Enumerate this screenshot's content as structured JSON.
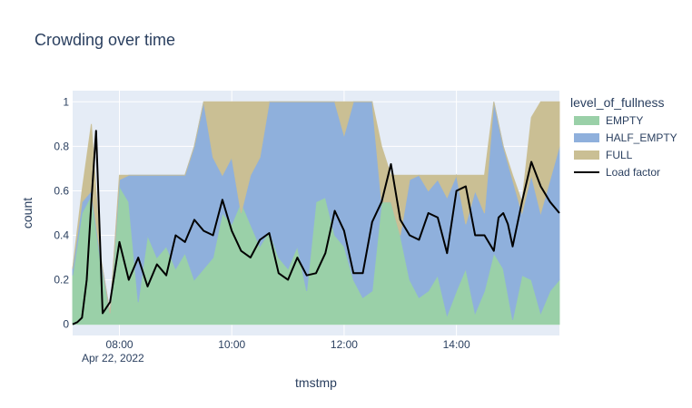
{
  "chart_data": {
    "type": "area",
    "title": "Crowding over time",
    "xlabel": "tmstmp",
    "ylabel": "count",
    "date_label": "Apr 22, 2022",
    "legend_title": "level_of_fullness",
    "legend_position": "right",
    "grid": true,
    "x_range": [
      "07:10",
      "15:50"
    ],
    "x_ticks": [
      "08:00",
      "10:00",
      "12:00",
      "14:00"
    ],
    "ylim": [
      -0.05,
      1.05
    ],
    "y_ticks": [
      "0",
      "0.2",
      "0.4",
      "0.6",
      "0.8",
      "1"
    ],
    "colors": {
      "EMPTY": "#9ad0a8",
      "HALF_EMPTY": "#8fb0dc",
      "FULL": "#cabf94",
      "Load factor": "#000000",
      "plot_bg": "#e5ecf6"
    },
    "stacked_series": [
      {
        "name": "EMPTY",
        "points": [
          [
            "07:10",
            0.22
          ],
          [
            "07:20",
            0.5
          ],
          [
            "07:30",
            0.58
          ],
          [
            "07:40",
            0.28
          ],
          [
            "07:50",
            0.05
          ],
          [
            "08:00",
            0.62
          ],
          [
            "08:10",
            0.55
          ],
          [
            "08:20",
            0.1
          ],
          [
            "08:30",
            0.4
          ],
          [
            "08:40",
            0.3
          ],
          [
            "08:50",
            0.35
          ],
          [
            "09:00",
            0.25
          ],
          [
            "09:10",
            0.32
          ],
          [
            "09:20",
            0.2
          ],
          [
            "09:30",
            0.25
          ],
          [
            "09:40",
            0.3
          ],
          [
            "09:50",
            0.5
          ],
          [
            "10:00",
            0.45
          ],
          [
            "10:10",
            0.55
          ],
          [
            "10:20",
            0.45
          ],
          [
            "10:30",
            0.35
          ],
          [
            "10:40",
            0.42
          ],
          [
            "10:50",
            0.3
          ],
          [
            "11:00",
            0.25
          ],
          [
            "11:10",
            0.35
          ],
          [
            "11:20",
            0.15
          ],
          [
            "11:30",
            0.55
          ],
          [
            "11:40",
            0.57
          ],
          [
            "11:50",
            0.4
          ],
          [
            "12:00",
            0.35
          ],
          [
            "12:10",
            0.2
          ],
          [
            "12:20",
            0.12
          ],
          [
            "12:30",
            0.15
          ],
          [
            "12:40",
            0.55
          ],
          [
            "12:50",
            0.55
          ],
          [
            "13:00",
            0.4
          ],
          [
            "13:10",
            0.2
          ],
          [
            "13:20",
            0.12
          ],
          [
            "13:30",
            0.15
          ],
          [
            "13:40",
            0.22
          ],
          [
            "13:50",
            0.04
          ],
          [
            "14:00",
            0.15
          ],
          [
            "14:10",
            0.25
          ],
          [
            "14:20",
            0.05
          ],
          [
            "14:30",
            0.15
          ],
          [
            "14:40",
            0.32
          ],
          [
            "14:50",
            0.25
          ],
          [
            "15:00",
            0.02
          ],
          [
            "15:10",
            0.22
          ],
          [
            "15:20",
            0.2
          ],
          [
            "15:30",
            0.05
          ],
          [
            "15:40",
            0.15
          ],
          [
            "15:50",
            0.2
          ]
        ]
      },
      {
        "name": "HALF_EMPTY",
        "points": [
          [
            "07:10",
            0.25
          ],
          [
            "07:20",
            0.55
          ],
          [
            "07:30",
            0.6
          ],
          [
            "07:40",
            0.3
          ],
          [
            "07:50",
            0.05
          ],
          [
            "08:00",
            0.65
          ],
          [
            "08:10",
            0.67
          ],
          [
            "08:20",
            0.67
          ],
          [
            "08:30",
            0.67
          ],
          [
            "08:40",
            0.67
          ],
          [
            "08:50",
            0.67
          ],
          [
            "09:00",
            0.67
          ],
          [
            "09:10",
            0.67
          ],
          [
            "09:20",
            0.8
          ],
          [
            "09:30",
            1
          ],
          [
            "09:40",
            0.75
          ],
          [
            "09:50",
            0.67
          ],
          [
            "10:00",
            0.75
          ],
          [
            "10:10",
            0.5
          ],
          [
            "10:20",
            0.67
          ],
          [
            "10:30",
            0.75
          ],
          [
            "10:40",
            1
          ],
          [
            "10:50",
            1
          ],
          [
            "11:00",
            1
          ],
          [
            "11:10",
            1
          ],
          [
            "11:20",
            1
          ],
          [
            "11:30",
            1
          ],
          [
            "11:40",
            1
          ],
          [
            "11:50",
            1
          ],
          [
            "12:00",
            0.85
          ],
          [
            "12:10",
            1
          ],
          [
            "12:20",
            1
          ],
          [
            "12:30",
            1
          ],
          [
            "12:40",
            0.55
          ],
          [
            "12:50",
            0.55
          ],
          [
            "13:00",
            0.4
          ],
          [
            "13:10",
            0.65
          ],
          [
            "13:20",
            0.67
          ],
          [
            "13:30",
            0.6
          ],
          [
            "13:40",
            0.65
          ],
          [
            "13:50",
            0.57
          ],
          [
            "14:00",
            0.67
          ],
          [
            "14:10",
            0.45
          ],
          [
            "14:20",
            0.6
          ],
          [
            "14:30",
            0.5
          ],
          [
            "14:40",
            1
          ],
          [
            "14:50",
            0.8
          ],
          [
            "15:00",
            0.65
          ],
          [
            "15:10",
            0.5
          ],
          [
            "15:20",
            0.67
          ],
          [
            "15:30",
            0.5
          ],
          [
            "15:40",
            0.65
          ],
          [
            "15:50",
            0.8
          ]
        ]
      },
      {
        "name": "FULL",
        "points": [
          [
            "07:10",
            0.25
          ],
          [
            "07:20",
            0.6
          ],
          [
            "07:30",
            0.9
          ],
          [
            "07:40",
            0.3
          ],
          [
            "07:50",
            0.05
          ],
          [
            "08:00",
            0.67
          ],
          [
            "08:10",
            0.67
          ],
          [
            "08:20",
            0.67
          ],
          [
            "08:30",
            0.67
          ],
          [
            "08:40",
            0.67
          ],
          [
            "08:50",
            0.67
          ],
          [
            "09:00",
            0.67
          ],
          [
            "09:10",
            0.67
          ],
          [
            "09:20",
            0.8
          ],
          [
            "09:30",
            1
          ],
          [
            "09:40",
            1
          ],
          [
            "09:50",
            1
          ],
          [
            "10:00",
            1
          ],
          [
            "10:10",
            1
          ],
          [
            "10:20",
            1
          ],
          [
            "10:30",
            1
          ],
          [
            "10:40",
            1
          ],
          [
            "10:50",
            1
          ],
          [
            "11:00",
            1
          ],
          [
            "11:10",
            1
          ],
          [
            "11:20",
            1
          ],
          [
            "11:30",
            1
          ],
          [
            "11:40",
            1
          ],
          [
            "11:50",
            1
          ],
          [
            "12:00",
            1
          ],
          [
            "12:10",
            1
          ],
          [
            "12:20",
            1
          ],
          [
            "12:30",
            1
          ],
          [
            "12:40",
            0.8
          ],
          [
            "12:50",
            0.67
          ],
          [
            "13:00",
            0.67
          ],
          [
            "13:10",
            0.67
          ],
          [
            "13:20",
            0.67
          ],
          [
            "13:30",
            0.67
          ],
          [
            "13:40",
            0.67
          ],
          [
            "13:50",
            0.67
          ],
          [
            "14:00",
            0.67
          ],
          [
            "14:10",
            0.67
          ],
          [
            "14:20",
            0.67
          ],
          [
            "14:30",
            0.67
          ],
          [
            "14:40",
            1
          ],
          [
            "14:50",
            0.8
          ],
          [
            "15:00",
            0.67
          ],
          [
            "15:10",
            0.55
          ],
          [
            "15:20",
            0.93
          ],
          [
            "15:30",
            1
          ],
          [
            "15:40",
            1
          ],
          [
            "15:50",
            1
          ]
        ]
      }
    ],
    "line_series": {
      "name": "Load factor",
      "points": [
        [
          "07:10",
          0
        ],
        [
          "07:15",
          0.01
        ],
        [
          "07:20",
          0.03
        ],
        [
          "07:25",
          0.2
        ],
        [
          "07:30",
          0.55
        ],
        [
          "07:35",
          0.87
        ],
        [
          "07:42",
          0.05
        ],
        [
          "07:50",
          0.1
        ],
        [
          "08:00",
          0.37
        ],
        [
          "08:10",
          0.2
        ],
        [
          "08:20",
          0.3
        ],
        [
          "08:30",
          0.17
        ],
        [
          "08:40",
          0.27
        ],
        [
          "08:50",
          0.22
        ],
        [
          "09:00",
          0.4
        ],
        [
          "09:10",
          0.37
        ],
        [
          "09:20",
          0.47
        ],
        [
          "09:30",
          0.42
        ],
        [
          "09:40",
          0.4
        ],
        [
          "09:50",
          0.56
        ],
        [
          "10:00",
          0.42
        ],
        [
          "10:10",
          0.33
        ],
        [
          "10:20",
          0.3
        ],
        [
          "10:30",
          0.38
        ],
        [
          "10:40",
          0.41
        ],
        [
          "10:50",
          0.23
        ],
        [
          "11:00",
          0.2
        ],
        [
          "11:10",
          0.3
        ],
        [
          "11:20",
          0.22
        ],
        [
          "11:30",
          0.23
        ],
        [
          "11:40",
          0.32
        ],
        [
          "11:50",
          0.51
        ],
        [
          "12:00",
          0.42
        ],
        [
          "12:10",
          0.23
        ],
        [
          "12:20",
          0.23
        ],
        [
          "12:30",
          0.46
        ],
        [
          "12:40",
          0.55
        ],
        [
          "12:50",
          0.72
        ],
        [
          "13:00",
          0.47
        ],
        [
          "13:10",
          0.4
        ],
        [
          "13:20",
          0.38
        ],
        [
          "13:30",
          0.5
        ],
        [
          "13:40",
          0.48
        ],
        [
          "13:50",
          0.32
        ],
        [
          "14:00",
          0.6
        ],
        [
          "14:10",
          0.62
        ],
        [
          "14:20",
          0.4
        ],
        [
          "14:30",
          0.4
        ],
        [
          "14:40",
          0.33
        ],
        [
          "14:45",
          0.48
        ],
        [
          "14:50",
          0.5
        ],
        [
          "14:55",
          0.45
        ],
        [
          "15:00",
          0.35
        ],
        [
          "15:10",
          0.55
        ],
        [
          "15:20",
          0.73
        ],
        [
          "15:30",
          0.62
        ],
        [
          "15:40",
          0.55
        ],
        [
          "15:50",
          0.5
        ]
      ]
    },
    "legend": [
      "EMPTY",
      "HALF_EMPTY",
      "FULL",
      "Load factor"
    ]
  }
}
